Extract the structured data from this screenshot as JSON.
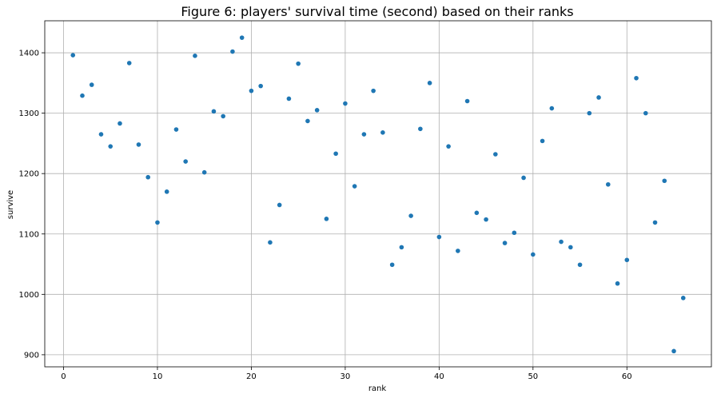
{
  "chart_data": {
    "type": "scatter",
    "title": "Figure 6: players' survival time (second) based on their ranks",
    "xlabel": "rank",
    "ylabel": "survive",
    "xlim": [
      -2,
      69
    ],
    "ylim": [
      880,
      1453
    ],
    "xticks": [
      0,
      10,
      20,
      30,
      40,
      50,
      60
    ],
    "yticks": [
      900,
      1000,
      1100,
      1200,
      1300,
      1400
    ],
    "grid": true,
    "color": "#1f77b4",
    "x": [
      1,
      2,
      3,
      4,
      5,
      6,
      7,
      8,
      9,
      10,
      11,
      12,
      13,
      14,
      15,
      16,
      17,
      18,
      19,
      20,
      21,
      22,
      23,
      24,
      25,
      26,
      27,
      28,
      29,
      30,
      31,
      32,
      33,
      34,
      35,
      36,
      37,
      38,
      39,
      40,
      41,
      42,
      43,
      44,
      45,
      46,
      47,
      48,
      49,
      50,
      51,
      52,
      53,
      54,
      55,
      56,
      57,
      58,
      59,
      60,
      61,
      62,
      63,
      64,
      65,
      66
    ],
    "y": [
      1396,
      1329,
      1347,
      1265,
      1245,
      1283,
      1383,
      1248,
      1194,
      1119,
      1170,
      1273,
      1220,
      1395,
      1202,
      1303,
      1295,
      1402,
      1425,
      1337,
      1345,
      1086,
      1148,
      1324,
      1382,
      1287,
      1305,
      1125,
      1233,
      1316,
      1179,
      1265,
      1337,
      1268,
      1049,
      1078,
      1130,
      1274,
      1350,
      1095,
      1245,
      1072,
      1320,
      1135,
      1124,
      1232,
      1085,
      1102,
      1193,
      1066,
      1254,
      1308,
      1087,
      1078,
      1049,
      1300,
      1326,
      1182,
      1018,
      1057,
      1358,
      1300,
      1119,
      1188,
      906,
      994
    ]
  }
}
